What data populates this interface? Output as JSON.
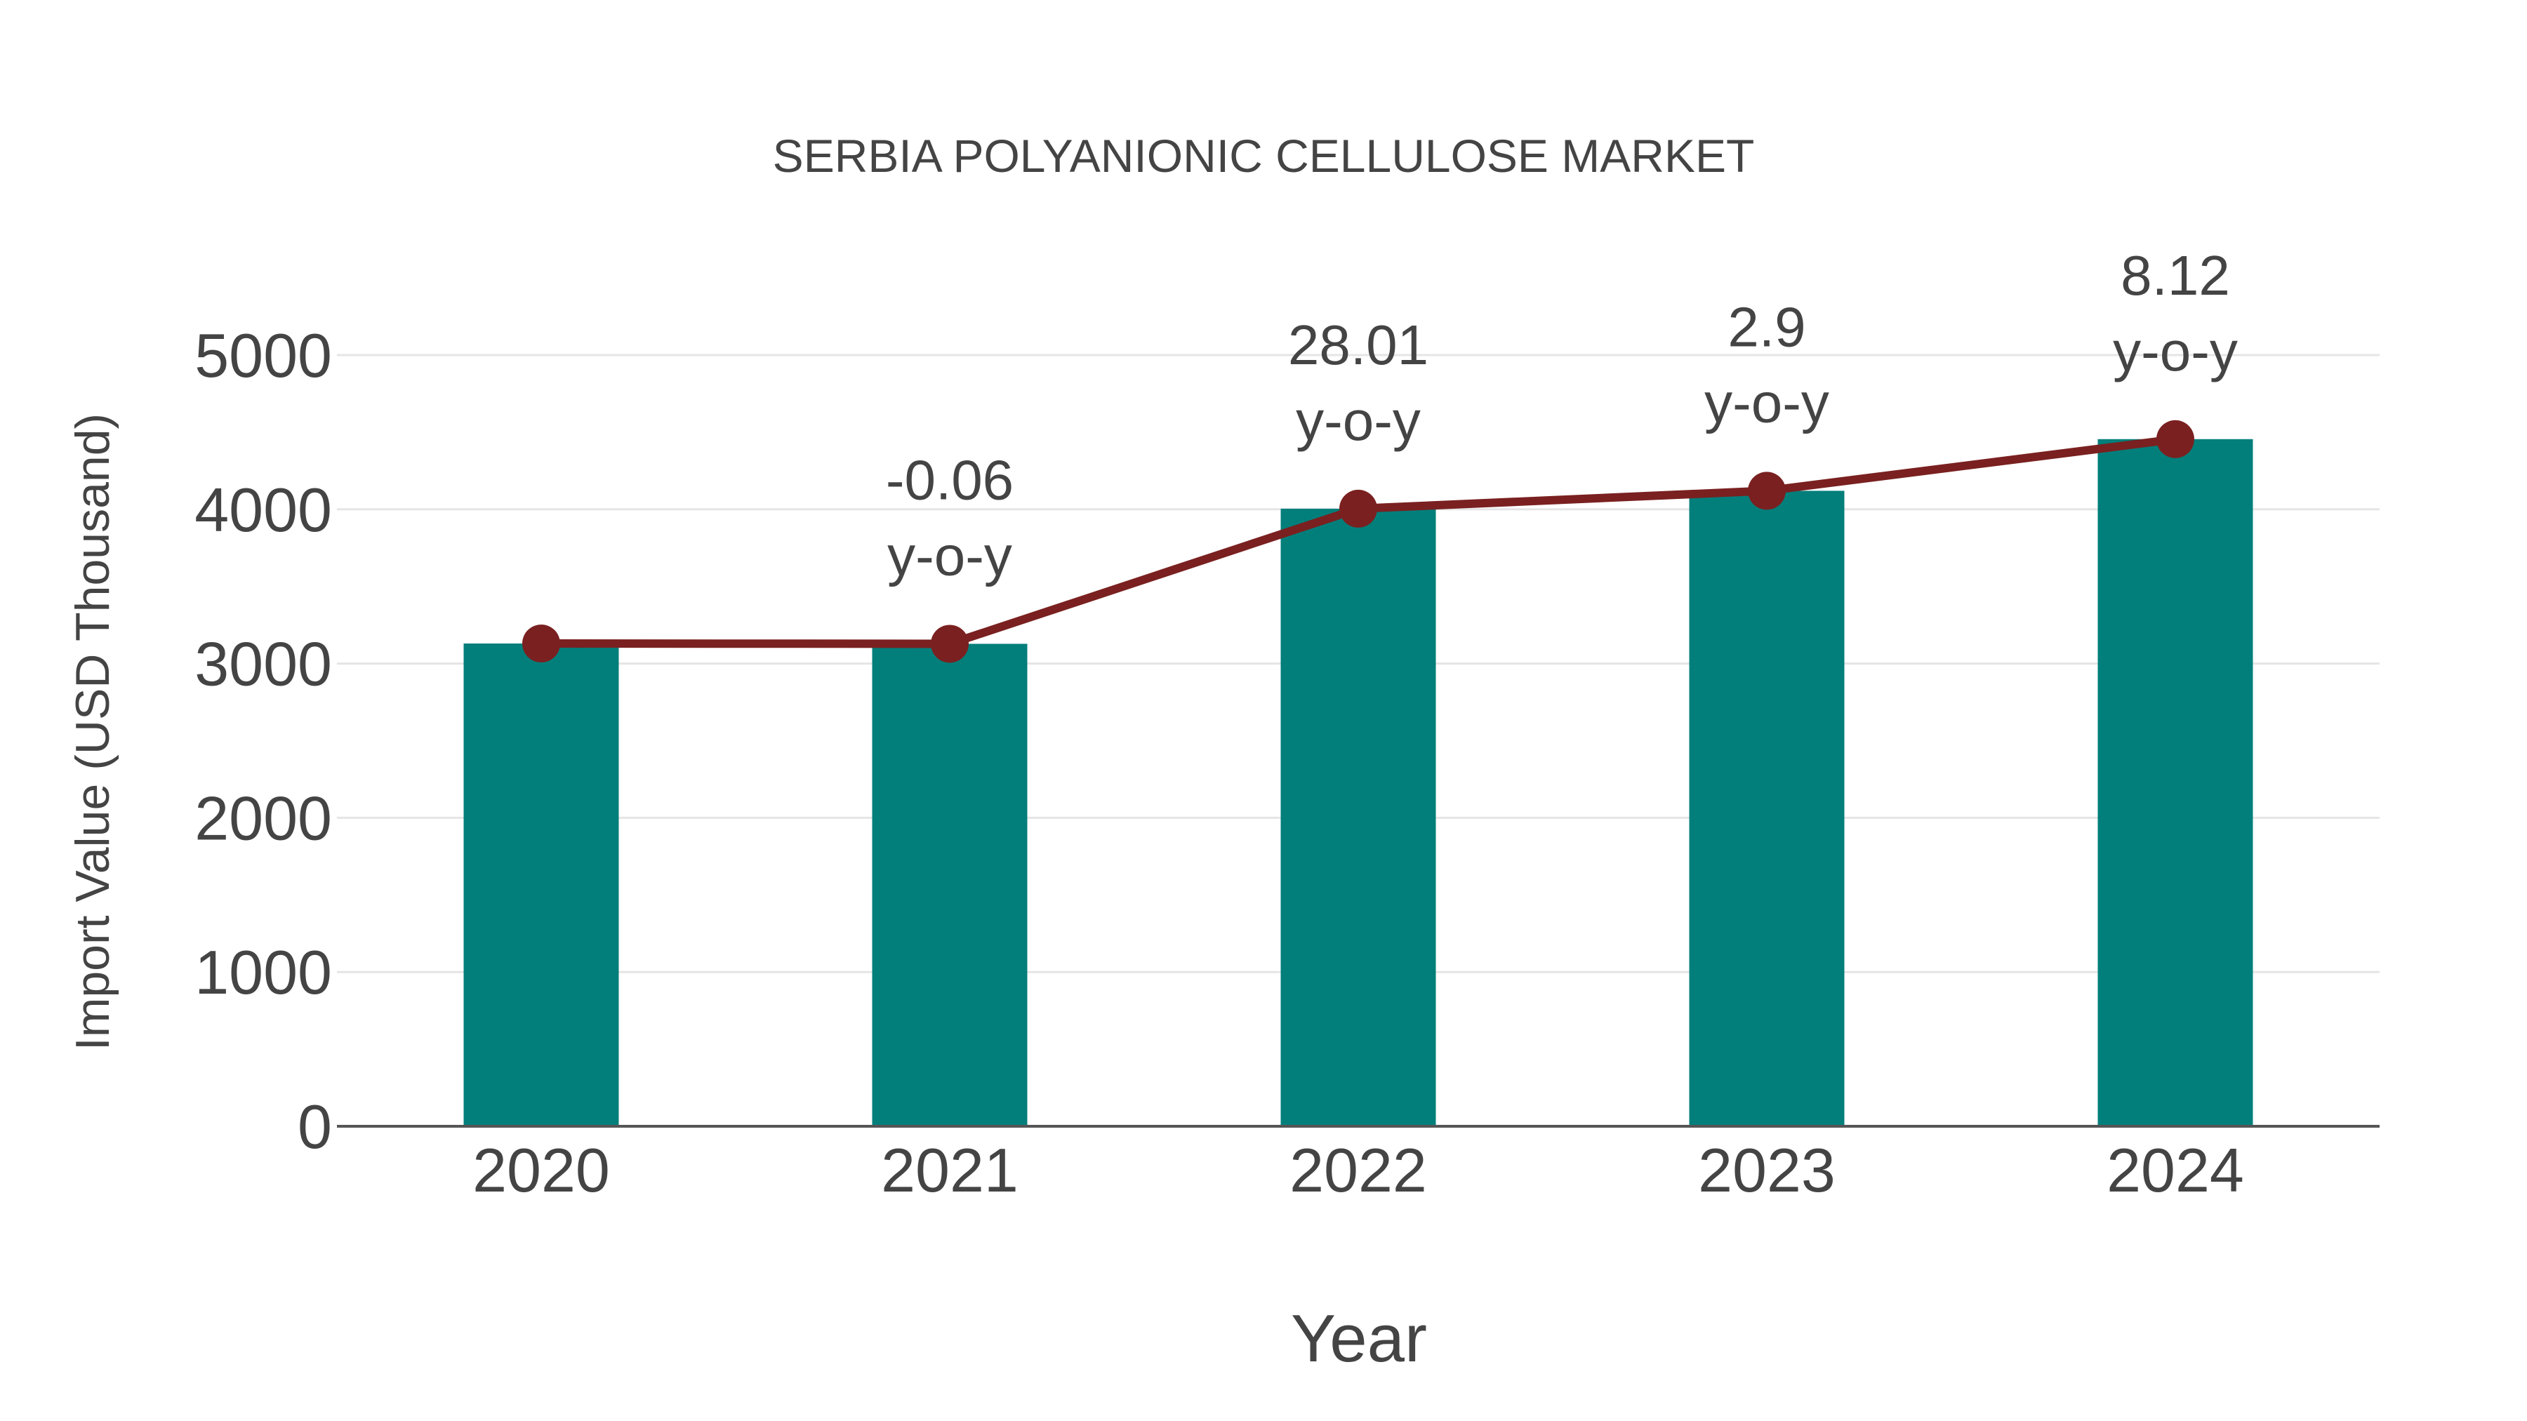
{
  "chart_data": {
    "type": "bar",
    "title": "SERBIA POLYANIONIC CELLULOSE MARKET",
    "xlabel": "Year",
    "ylabel": "Import Value (USD Thousand)",
    "categories": [
      "2020",
      "2021",
      "2022",
      "2023",
      "2024"
    ],
    "series": [
      {
        "name": "Import Value",
        "type": "bar",
        "color": "#037f7b",
        "values": [
          3130,
          3128,
          4004,
          4120,
          4455
        ]
      },
      {
        "name": "Import Value trend",
        "type": "line",
        "color": "#7a2020",
        "values": [
          3130,
          3128,
          4004,
          4120,
          4455
        ]
      }
    ],
    "annotations": [
      {
        "category": "2021",
        "value": "-0.06",
        "suffix": "y-o-y"
      },
      {
        "category": "2022",
        "value": "28.01",
        "suffix": "y-o-y"
      },
      {
        "category": "2023",
        "value": "2.9",
        "suffix": "y-o-y"
      },
      {
        "category": "2024",
        "value": "8.12",
        "suffix": "y-o-y"
      }
    ],
    "yticks": [
      "0",
      "1000",
      "2000",
      "3000",
      "4000",
      "5000"
    ],
    "ylim": [
      0,
      5000
    ],
    "grid": true,
    "legend": "none"
  },
  "colors": {
    "bar": "#037f7b",
    "line": "#7a2020",
    "text": "#444444",
    "grid": "#e5e5e5",
    "axis": "#555555"
  }
}
